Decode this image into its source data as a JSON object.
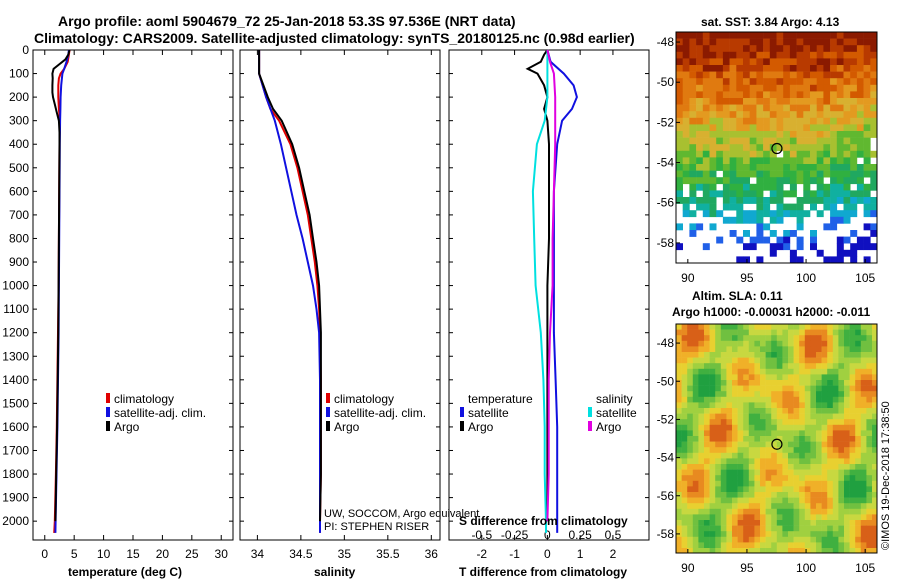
{
  "title_line1": "Argo profile: aoml 5904679_72 25-Jan-2018 53.3S 97.536E (NRT data)",
  "title_line2": "Climatology: CARS2009. Satellite-adjusted climatology: synTS_20180125.nc (0.98d earlier)",
  "colors": {
    "climatology": "#e00000",
    "satellite": "#1010e0",
    "argo": "#000000",
    "sat_salinity": "#00e0e0",
    "argo_salinity": "#e000e0"
  },
  "chart_data": [
    {
      "type": "line",
      "name": "temperature",
      "xlabel": "temperature (deg C)",
      "xlim": [
        -2,
        32
      ],
      "ylim": [
        2080,
        0
      ],
      "xticks": [
        "0",
        "5",
        "10",
        "15",
        "20",
        "25",
        "30"
      ],
      "xtick_values": [
        0,
        5,
        10,
        15,
        20,
        25,
        30
      ],
      "yticks": [
        "0",
        "100",
        "200",
        "300",
        "400",
        "500",
        "600",
        "700",
        "800",
        "900",
        "1000",
        "1100",
        "1200",
        "1300",
        "1400",
        "1500",
        "1600",
        "1700",
        "1800",
        "1900",
        "2000"
      ],
      "ytick_values": [
        0,
        100,
        200,
        300,
        400,
        500,
        600,
        700,
        800,
        900,
        1000,
        1100,
        1200,
        1300,
        1400,
        1500,
        1600,
        1700,
        1800,
        1900,
        2000
      ],
      "legend": [
        "climatology",
        "satellite-adj. clim.",
        "Argo"
      ],
      "series": [
        {
          "name": "climatology",
          "color": "#e00000",
          "depth": [
            0,
            20,
            50,
            80,
            100,
            120,
            150,
            200,
            250,
            280,
            300,
            400,
            600,
            800,
            1000,
            1200,
            1400,
            1600,
            1800,
            2000,
            2050
          ],
          "values": [
            4.2,
            4.1,
            3.9,
            3.3,
            2.7,
            2.4,
            2.3,
            2.3,
            2.4,
            2.5,
            2.5,
            2.5,
            2.45,
            2.4,
            2.35,
            2.25,
            2.15,
            2.05,
            1.9,
            1.7,
            1.6
          ]
        },
        {
          "name": "satellite-adj. clim.",
          "color": "#1010e0",
          "depth": [
            0,
            20,
            50,
            80,
            100,
            150,
            200,
            250,
            300,
            400,
            600,
            800,
            1000,
            1200,
            1400,
            1600,
            1800,
            2000,
            2050
          ],
          "values": [
            4.1,
            4.0,
            3.7,
            3.3,
            3.0,
            2.8,
            2.7,
            2.65,
            2.6,
            2.55,
            2.5,
            2.45,
            2.4,
            2.35,
            2.25,
            2.15,
            2.0,
            1.85,
            1.8
          ]
        },
        {
          "name": "Argo",
          "color": "#000000",
          "depth": [
            0,
            20,
            40,
            60,
            80,
            100,
            120,
            150,
            180,
            200,
            230,
            260,
            300,
            350,
            400,
            600,
            800,
            1000,
            1200,
            1400,
            1600,
            1800,
            2000
          ],
          "values": [
            4.2,
            4.0,
            3.5,
            2.5,
            1.5,
            1.3,
            1.35,
            1.3,
            1.3,
            1.4,
            1.7,
            2.0,
            2.4,
            2.5,
            2.5,
            2.45,
            2.4,
            2.35,
            2.3,
            2.2,
            2.1,
            1.95,
            1.8
          ]
        }
      ]
    },
    {
      "type": "line",
      "name": "salinity",
      "xlabel": "salinity",
      "xlim": [
        33.8,
        36.1
      ],
      "ylim": [
        2080,
        0
      ],
      "xticks": [
        "34",
        "34.5",
        "35",
        "35.5",
        "36"
      ],
      "xtick_values": [
        34,
        34.5,
        35,
        35.5,
        36
      ],
      "legend": [
        "climatology",
        "satellite-adj. clim.",
        "Argo"
      ],
      "annotation1": "UW, SOCCOM, Argo equivalent",
      "annotation2": "PI: STEPHEN RISER",
      "series": [
        {
          "name": "climatology",
          "color": "#e00000",
          "depth": [
            0,
            100,
            200,
            250,
            300,
            400,
            500,
            600,
            700,
            800,
            900,
            1000,
            1100,
            1200,
            1400,
            1600,
            1800,
            2000,
            2050
          ],
          "values": [
            34.02,
            34.02,
            34.1,
            34.15,
            34.25,
            34.38,
            34.46,
            34.52,
            34.58,
            34.62,
            34.66,
            34.69,
            34.71,
            34.72,
            34.73,
            34.73,
            34.73,
            34.72,
            34.72
          ]
        },
        {
          "name": "satellite-adj. clim.",
          "color": "#1010e0",
          "depth": [
            0,
            100,
            200,
            300,
            400,
            500,
            600,
            700,
            800,
            900,
            1000,
            1100,
            1200,
            1400,
            1600,
            1800,
            2000,
            2050
          ],
          "values": [
            34.02,
            34.02,
            34.1,
            34.2,
            34.27,
            34.33,
            34.39,
            34.45,
            34.52,
            34.58,
            34.64,
            34.68,
            34.71,
            34.72,
            34.72,
            34.72,
            34.72,
            34.72
          ]
        },
        {
          "name": "Argo",
          "color": "#000000",
          "depth": [
            0,
            100,
            200,
            250,
            300,
            400,
            500,
            600,
            700,
            800,
            900,
            1000,
            1100,
            1200,
            1400,
            1600,
            1800,
            2000
          ],
          "values": [
            34.02,
            34.02,
            34.12,
            34.18,
            34.28,
            34.4,
            34.48,
            34.54,
            34.6,
            34.64,
            34.68,
            34.71,
            34.72,
            34.73,
            34.73,
            34.73,
            34.73,
            34.72
          ]
        }
      ]
    },
    {
      "type": "line",
      "name": "difference",
      "xlabel": "T difference from climatology",
      "toplabel": "S difference from climatology",
      "xlim": [
        -3,
        3.1
      ],
      "ylim": [
        2080,
        0
      ],
      "xticks": [
        "-2",
        "-1",
        "0",
        "1",
        "2"
      ],
      "xtick_values": [
        -2,
        -1,
        0,
        1,
        2
      ],
      "sticks": [
        "-0.5",
        "-0.25",
        "0",
        "0.25",
        "0.5"
      ],
      "stick_values": [
        -0.5,
        -0.25,
        0,
        0.25,
        0.5
      ],
      "legend_temp_title": "temperature",
      "legend_sal_title": "salinity",
      "legend_satellite": "satellite",
      "legend_argo": "Argo",
      "series": [
        {
          "name": "temperature satellite",
          "color": "#1010e0",
          "depth": [
            0,
            50,
            100,
            150,
            200,
            250,
            300,
            400,
            600,
            800,
            1000,
            1200,
            1400,
            1600,
            1800,
            2000,
            2050
          ],
          "values": [
            0.0,
            0.1,
            0.5,
            0.8,
            0.9,
            0.75,
            0.45,
            0.3,
            0.2,
            0.2,
            0.2,
            0.2,
            0.25,
            0.3,
            0.3,
            0.3,
            0.3
          ]
        },
        {
          "name": "temperature Argo",
          "color": "#000000",
          "depth": [
            0,
            20,
            50,
            80,
            100,
            150,
            200,
            250,
            300,
            400,
            600,
            800,
            1000,
            1200,
            1400,
            1600,
            1800,
            2000
          ],
          "values": [
            0.0,
            -0.1,
            -0.2,
            -0.6,
            -0.3,
            -0.1,
            0.0,
            -0.1,
            0.0,
            0.05,
            0.05,
            0.05,
            0.0,
            0.0,
            0.0,
            0.0,
            0.0,
            0.0
          ]
        },
        {
          "name": "salinity satellite",
          "color": "#00e0e0",
          "depth": [
            0,
            100,
            200,
            300,
            400,
            600,
            800,
            1000,
            1200,
            1400,
            1600,
            1800,
            2000,
            2050
          ],
          "values": [
            0.0,
            0.0,
            0.0,
            -0.02,
            -0.08,
            -0.11,
            -0.1,
            -0.09,
            -0.05,
            -0.03,
            -0.02,
            -0.02,
            -0.01,
            -0.01
          ]
        },
        {
          "name": "salinity Argo",
          "color": "#e000e0",
          "depth": [
            0,
            50,
            100,
            200,
            300,
            400,
            600,
            800,
            1000,
            1200,
            1400,
            1600,
            1800,
            2000
          ],
          "values": [
            0.0,
            0.02,
            0.05,
            0.06,
            0.06,
            0.06,
            0.05,
            0.04,
            0.04,
            0.02,
            0.01,
            0.01,
            0.01,
            0.0
          ]
        }
      ]
    },
    {
      "type": "heatmap",
      "name": "sst-map",
      "title": "sat. SST: 3.84 Argo: 4.13",
      "xlim": [
        89,
        106
      ],
      "ylim": [
        -59,
        -47.5
      ],
      "xticks": [
        "90",
        "95",
        "100",
        "105"
      ],
      "xtick_values": [
        90,
        95,
        100,
        105
      ],
      "yticks": [
        "-48",
        "-50",
        "-52",
        "-54",
        "-56",
        "-58"
      ],
      "ytick_values": [
        -48,
        -50,
        -52,
        -54,
        -56,
        -58
      ],
      "profile_lon": 97.536,
      "profile_lat": -53.3
    },
    {
      "type": "heatmap",
      "name": "sla-map",
      "title1": "Altim. SLA: 0.11",
      "title2": "Argo h1000: -0.00031 h2000: -0.011",
      "xlim": [
        89,
        106
      ],
      "ylim": [
        -59,
        -47
      ],
      "xticks": [
        "90",
        "95",
        "100",
        "105"
      ],
      "xtick_values": [
        90,
        95,
        100,
        105
      ],
      "yticks": [
        "-48",
        "-50",
        "-52",
        "-54",
        "-56",
        "-58"
      ],
      "ytick_values": [
        -48,
        -50,
        -52,
        -54,
        -56,
        -58
      ],
      "profile_lon": 97.536,
      "profile_lat": -53.3
    }
  ],
  "watermark": "©IMOS 19-Dec-2018 17:38:50"
}
